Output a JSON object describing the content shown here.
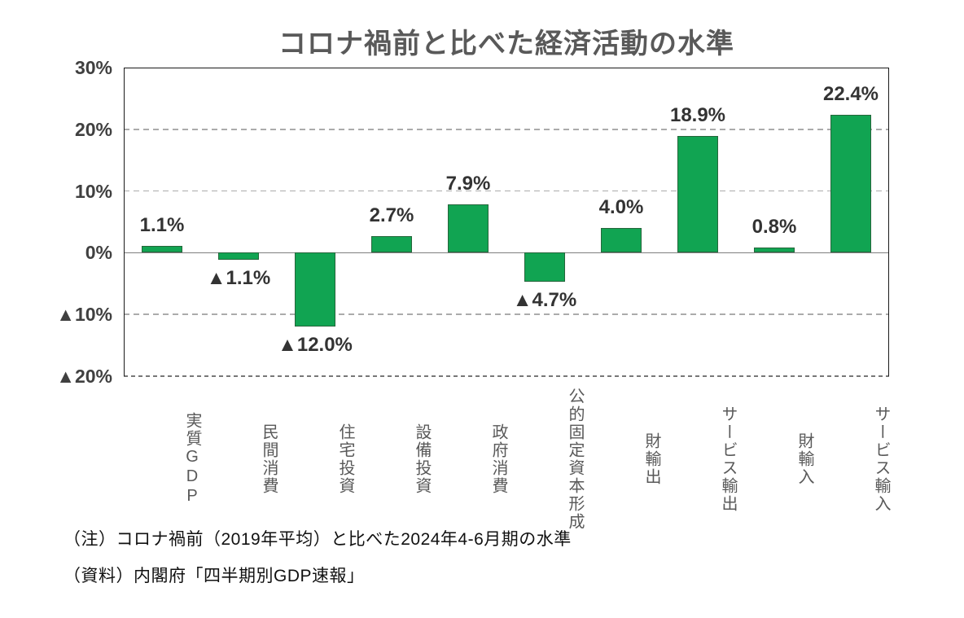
{
  "chart_data": {
    "type": "bar",
    "title": "コロナ禍前と比べた経済活動の水準",
    "categories": [
      "実質GDP",
      "民間消費",
      "住宅投資",
      "設備投資",
      "政府消費",
      "公的固定資本形成",
      "財輸出",
      "サービス輸出",
      "財輸入",
      "サービス輸入"
    ],
    "values": [
      1.1,
      -1.1,
      -12.0,
      2.7,
      7.9,
      -4.7,
      4.0,
      18.9,
      0.8,
      22.4
    ],
    "value_labels": [
      "1.1%",
      "▲1.1%",
      "▲12.0%",
      "2.7%",
      "7.9%",
      "▲4.7%",
      "4.0%",
      "18.9%",
      "0.8%",
      "22.4%"
    ],
    "ylim": [
      -20,
      30
    ],
    "y_ticks": [
      {
        "value": 30,
        "label": "30%"
      },
      {
        "value": 20,
        "label": "20%"
      },
      {
        "value": 10,
        "label": "10%"
      },
      {
        "value": 0,
        "label": "0%"
      },
      {
        "value": -10,
        "label": "▲10%"
      },
      {
        "value": -20,
        "label": "▲20%"
      }
    ],
    "grid": "horizontal dashed lines at 20%, 10%, -10%, -20%; solid gray line at 0%",
    "legend": "none",
    "negative_notation": "▲ prefix denotes negative values",
    "bar_color": "#11a452",
    "bar_border_color": "#25663b",
    "grid_color": "#ababab",
    "zero_line_color": "#7f7f7f",
    "axis_border_color": "#1a1a1a",
    "frame_bottom_dash_color": "#777777",
    "title_color": "#595959"
  },
  "notes": {
    "note1": "（注）コロナ禍前（2019年平均）と比べた2024年4-6月期の水準",
    "note2": "（資料）内閣府「四半期別GDP速報」"
  }
}
